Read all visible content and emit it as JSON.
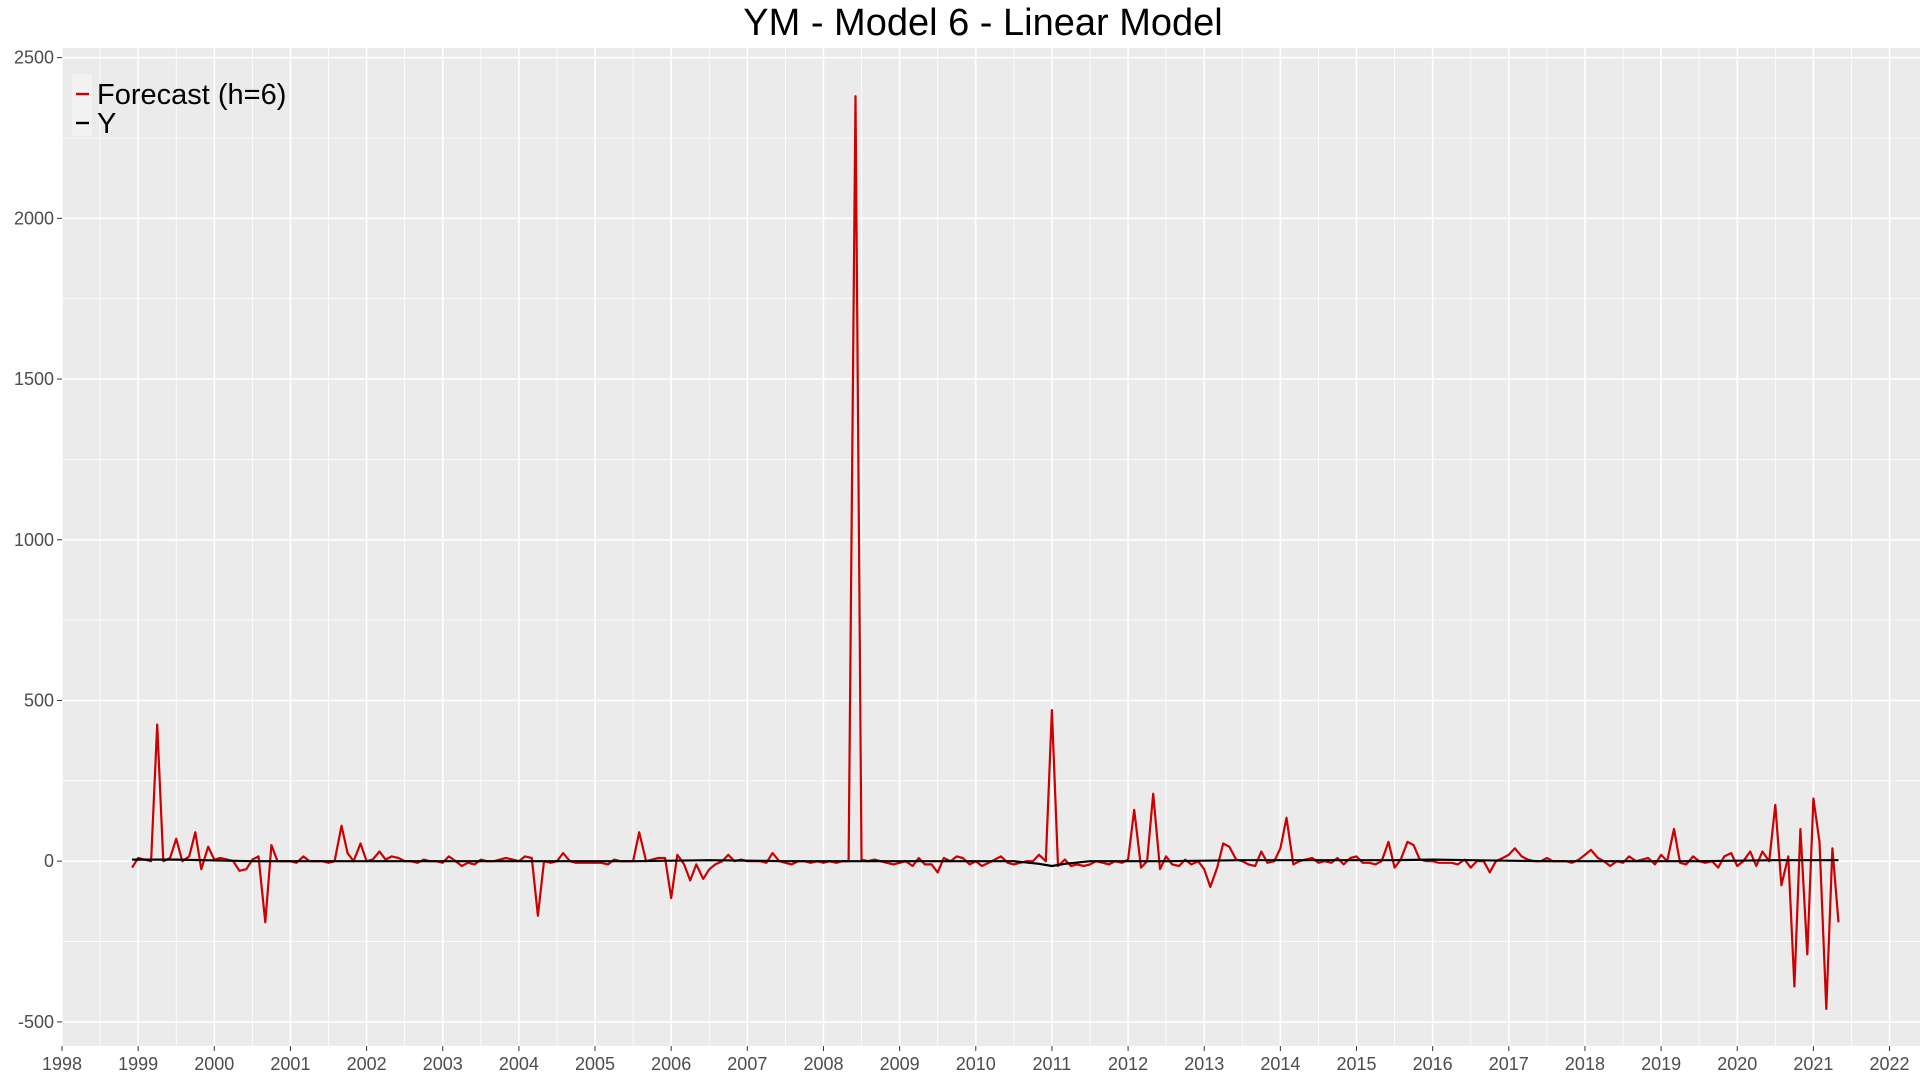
{
  "chart_data": {
    "type": "line",
    "title": "YM - Model 6 - Linear Model",
    "xlabel": "",
    "ylabel": "",
    "xlim": [
      1998.0,
      2022.4
    ],
    "ylim": [
      -575,
      2530
    ],
    "x_ticks": [
      1998,
      1999,
      2000,
      2001,
      2002,
      2003,
      2004,
      2005,
      2006,
      2007,
      2008,
      2009,
      2010,
      2011,
      2012,
      2013,
      2014,
      2015,
      2016,
      2017,
      2018,
      2019,
      2020,
      2021,
      2022
    ],
    "y_ticks": [
      -500,
      0,
      500,
      1000,
      1500,
      2000,
      2500
    ],
    "grid": true,
    "legend_position": "top-left",
    "background_color": "#ebebeb",
    "grid_color": "#ffffff",
    "series": [
      {
        "name": "Forecast (h=6)",
        "color": "#cc0000",
        "points": [
          [
            1998.92,
            -20
          ],
          [
            1999.0,
            10
          ],
          [
            1999.08,
            5
          ],
          [
            1999.17,
            0
          ],
          [
            1999.25,
            425
          ],
          [
            1999.33,
            0
          ],
          [
            1999.42,
            10
          ],
          [
            1999.5,
            70
          ],
          [
            1999.58,
            0
          ],
          [
            1999.67,
            15
          ],
          [
            1999.75,
            90
          ],
          [
            1999.83,
            -25
          ],
          [
            1999.92,
            45
          ],
          [
            2000.0,
            5
          ],
          [
            2000.08,
            10
          ],
          [
            2000.17,
            5
          ],
          [
            2000.25,
            0
          ],
          [
            2000.33,
            -30
          ],
          [
            2000.42,
            -25
          ],
          [
            2000.5,
            5
          ],
          [
            2000.58,
            15
          ],
          [
            2000.67,
            -190
          ],
          [
            2000.75,
            50
          ],
          [
            2000.83,
            0
          ],
          [
            2000.92,
            0
          ],
          [
            2001.0,
            0
          ],
          [
            2001.08,
            -5
          ],
          [
            2001.17,
            15
          ],
          [
            2001.25,
            0
          ],
          [
            2001.33,
            0
          ],
          [
            2001.42,
            0
          ],
          [
            2001.5,
            -5
          ],
          [
            2001.58,
            0
          ],
          [
            2001.67,
            110
          ],
          [
            2001.75,
            25
          ],
          [
            2001.83,
            0
          ],
          [
            2001.92,
            55
          ],
          [
            2002.0,
            0
          ],
          [
            2002.08,
            5
          ],
          [
            2002.17,
            30
          ],
          [
            2002.25,
            5
          ],
          [
            2002.33,
            15
          ],
          [
            2002.42,
            10
          ],
          [
            2002.5,
            0
          ],
          [
            2002.58,
            0
          ],
          [
            2002.67,
            -5
          ],
          [
            2002.75,
            5
          ],
          [
            2002.83,
            0
          ],
          [
            2002.92,
            0
          ],
          [
            2003.0,
            -5
          ],
          [
            2003.08,
            15
          ],
          [
            2003.17,
            0
          ],
          [
            2003.25,
            -15
          ],
          [
            2003.33,
            -5
          ],
          [
            2003.42,
            -10
          ],
          [
            2003.5,
            5
          ],
          [
            2003.58,
            0
          ],
          [
            2003.67,
            0
          ],
          [
            2003.75,
            5
          ],
          [
            2003.83,
            10
          ],
          [
            2003.92,
            5
          ],
          [
            2004.0,
            0
          ],
          [
            2004.08,
            15
          ],
          [
            2004.17,
            10
          ],
          [
            2004.25,
            -170
          ],
          [
            2004.33,
            0
          ],
          [
            2004.42,
            -5
          ],
          [
            2004.5,
            0
          ],
          [
            2004.58,
            25
          ],
          [
            2004.67,
            0
          ],
          [
            2004.75,
            -5
          ],
          [
            2004.83,
            -5
          ],
          [
            2004.92,
            -5
          ],
          [
            2005.0,
            -5
          ],
          [
            2005.08,
            -5
          ],
          [
            2005.17,
            -10
          ],
          [
            2005.25,
            5
          ],
          [
            2005.33,
            0
          ],
          [
            2005.42,
            0
          ],
          [
            2005.5,
            0
          ],
          [
            2005.58,
            90
          ],
          [
            2005.67,
            0
          ],
          [
            2005.75,
            5
          ],
          [
            2005.83,
            10
          ],
          [
            2005.92,
            10
          ],
          [
            2006.0,
            -115
          ],
          [
            2006.08,
            20
          ],
          [
            2006.17,
            -10
          ],
          [
            2006.25,
            -60
          ],
          [
            2006.33,
            -10
          ],
          [
            2006.42,
            -55
          ],
          [
            2006.5,
            -25
          ],
          [
            2006.58,
            -10
          ],
          [
            2006.67,
            0
          ],
          [
            2006.75,
            20
          ],
          [
            2006.83,
            0
          ],
          [
            2006.92,
            5
          ],
          [
            2007.0,
            0
          ],
          [
            2007.08,
            0
          ],
          [
            2007.17,
            0
          ],
          [
            2007.25,
            -5
          ],
          [
            2007.33,
            25
          ],
          [
            2007.42,
            0
          ],
          [
            2007.5,
            -5
          ],
          [
            2007.58,
            -10
          ],
          [
            2007.67,
            0
          ],
          [
            2007.75,
            0
          ],
          [
            2007.83,
            -5
          ],
          [
            2007.92,
            0
          ],
          [
            2008.0,
            -5
          ],
          [
            2008.08,
            0
          ],
          [
            2008.17,
            -5
          ],
          [
            2008.25,
            0
          ],
          [
            2008.33,
            0
          ],
          [
            2008.42,
            2380
          ],
          [
            2008.5,
            5
          ],
          [
            2008.58,
            0
          ],
          [
            2008.67,
            5
          ],
          [
            2008.75,
            0
          ],
          [
            2008.83,
            -5
          ],
          [
            2008.92,
            -10
          ],
          [
            2009.0,
            -5
          ],
          [
            2009.08,
            0
          ],
          [
            2009.17,
            -15
          ],
          [
            2009.25,
            10
          ],
          [
            2009.33,
            -10
          ],
          [
            2009.42,
            -10
          ],
          [
            2009.5,
            -35
          ],
          [
            2009.58,
            10
          ],
          [
            2009.67,
            0
          ],
          [
            2009.75,
            15
          ],
          [
            2009.83,
            10
          ],
          [
            2009.92,
            -10
          ],
          [
            2010.0,
            0
          ],
          [
            2010.08,
            -15
          ],
          [
            2010.17,
            -5
          ],
          [
            2010.25,
            5
          ],
          [
            2010.33,
            15
          ],
          [
            2010.42,
            -5
          ],
          [
            2010.5,
            -10
          ],
          [
            2010.58,
            -5
          ],
          [
            2010.67,
            0
          ],
          [
            2010.75,
            0
          ],
          [
            2010.83,
            20
          ],
          [
            2010.92,
            0
          ],
          [
            2011.0,
            470
          ],
          [
            2011.08,
            -15
          ],
          [
            2011.17,
            5
          ],
          [
            2011.25,
            -15
          ],
          [
            2011.33,
            -10
          ],
          [
            2011.42,
            -15
          ],
          [
            2011.5,
            -10
          ],
          [
            2011.58,
            0
          ],
          [
            2011.67,
            -5
          ],
          [
            2011.75,
            -10
          ],
          [
            2011.83,
            0
          ],
          [
            2011.92,
            -5
          ],
          [
            2012.0,
            5
          ],
          [
            2012.08,
            160
          ],
          [
            2012.17,
            -20
          ],
          [
            2012.25,
            0
          ],
          [
            2012.33,
            210
          ],
          [
            2012.42,
            -25
          ],
          [
            2012.5,
            15
          ],
          [
            2012.58,
            -10
          ],
          [
            2012.67,
            -15
          ],
          [
            2012.75,
            5
          ],
          [
            2012.83,
            -10
          ],
          [
            2012.92,
            0
          ],
          [
            2013.0,
            -25
          ],
          [
            2013.08,
            -80
          ],
          [
            2013.17,
            -20
          ],
          [
            2013.25,
            55
          ],
          [
            2013.33,
            45
          ],
          [
            2013.42,
            5
          ],
          [
            2013.5,
            0
          ],
          [
            2013.58,
            -10
          ],
          [
            2013.67,
            -15
          ],
          [
            2013.75,
            30
          ],
          [
            2013.83,
            -5
          ],
          [
            2013.92,
            0
          ],
          [
            2014.0,
            40
          ],
          [
            2014.08,
            135
          ],
          [
            2014.17,
            -10
          ],
          [
            2014.25,
            0
          ],
          [
            2014.33,
            5
          ],
          [
            2014.42,
            10
          ],
          [
            2014.5,
            -5
          ],
          [
            2014.58,
            0
          ],
          [
            2014.67,
            -5
          ],
          [
            2014.75,
            10
          ],
          [
            2014.83,
            -10
          ],
          [
            2014.92,
            10
          ],
          [
            2015.0,
            15
          ],
          [
            2015.08,
            -5
          ],
          [
            2015.17,
            -5
          ],
          [
            2015.25,
            -10
          ],
          [
            2015.33,
            0
          ],
          [
            2015.42,
            60
          ],
          [
            2015.5,
            -20
          ],
          [
            2015.58,
            5
          ],
          [
            2015.67,
            60
          ],
          [
            2015.75,
            50
          ],
          [
            2015.83,
            5
          ],
          [
            2015.92,
            0
          ],
          [
            2016.0,
            0
          ],
          [
            2016.08,
            -5
          ],
          [
            2016.17,
            -5
          ],
          [
            2016.25,
            -5
          ],
          [
            2016.33,
            -10
          ],
          [
            2016.42,
            5
          ],
          [
            2016.5,
            -20
          ],
          [
            2016.58,
            0
          ],
          [
            2016.67,
            0
          ],
          [
            2016.75,
            -35
          ],
          [
            2016.83,
            0
          ],
          [
            2016.92,
            10
          ],
          [
            2017.0,
            20
          ],
          [
            2017.08,
            40
          ],
          [
            2017.17,
            15
          ],
          [
            2017.25,
            5
          ],
          [
            2017.33,
            0
          ],
          [
            2017.42,
            0
          ],
          [
            2017.5,
            10
          ],
          [
            2017.58,
            0
          ],
          [
            2017.67,
            0
          ],
          [
            2017.75,
            0
          ],
          [
            2017.83,
            -5
          ],
          [
            2017.92,
            5
          ],
          [
            2018.0,
            20
          ],
          [
            2018.08,
            35
          ],
          [
            2018.17,
            10
          ],
          [
            2018.25,
            0
          ],
          [
            2018.33,
            -15
          ],
          [
            2018.42,
            0
          ],
          [
            2018.5,
            -5
          ],
          [
            2018.58,
            15
          ],
          [
            2018.67,
            0
          ],
          [
            2018.75,
            5
          ],
          [
            2018.83,
            10
          ],
          [
            2018.92,
            -10
          ],
          [
            2019.0,
            20
          ],
          [
            2019.08,
            0
          ],
          [
            2019.17,
            100
          ],
          [
            2019.25,
            -5
          ],
          [
            2019.33,
            -10
          ],
          [
            2019.42,
            15
          ],
          [
            2019.5,
            0
          ],
          [
            2019.58,
            -5
          ],
          [
            2019.67,
            0
          ],
          [
            2019.75,
            -20
          ],
          [
            2019.83,
            15
          ],
          [
            2019.92,
            25
          ],
          [
            2020.0,
            -15
          ],
          [
            2020.08,
            0
          ],
          [
            2020.17,
            30
          ],
          [
            2020.25,
            -15
          ],
          [
            2020.33,
            30
          ],
          [
            2020.42,
            0
          ],
          [
            2020.5,
            175
          ],
          [
            2020.58,
            -75
          ],
          [
            2020.67,
            15
          ],
          [
            2020.75,
            -390
          ],
          [
            2020.83,
            100
          ],
          [
            2020.92,
            -290
          ],
          [
            2021.0,
            195
          ],
          [
            2021.08,
            60
          ],
          [
            2021.17,
            -460
          ],
          [
            2021.25,
            40
          ],
          [
            2021.33,
            -190
          ]
        ]
      },
      {
        "name": "Y",
        "color": "#000000",
        "points": [
          [
            1998.92,
            5
          ],
          [
            1999.5,
            5
          ],
          [
            2000.5,
            0
          ],
          [
            2001.5,
            0
          ],
          [
            2002.5,
            0
          ],
          [
            2003.5,
            0
          ],
          [
            2004.5,
            0
          ],
          [
            2005.5,
            0
          ],
          [
            2006.5,
            3
          ],
          [
            2007.5,
            0
          ],
          [
            2008.5,
            0
          ],
          [
            2009.5,
            0
          ],
          [
            2010.5,
            0
          ],
          [
            2010.83,
            -8
          ],
          [
            2011.0,
            -15
          ],
          [
            2011.17,
            -8
          ],
          [
            2011.5,
            0
          ],
          [
            2012.5,
            0
          ],
          [
            2013.5,
            3
          ],
          [
            2014.5,
            3
          ],
          [
            2015.5,
            3
          ],
          [
            2016.0,
            5
          ],
          [
            2016.5,
            3
          ],
          [
            2017.5,
            0
          ],
          [
            2018.5,
            0
          ],
          [
            2019.5,
            0
          ],
          [
            2020.5,
            3
          ],
          [
            2021.33,
            3
          ]
        ]
      }
    ]
  }
}
